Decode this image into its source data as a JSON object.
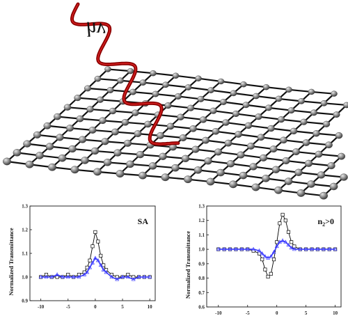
{
  "illustration": {
    "photon_label": "hv",
    "photon_color": "#8b0000",
    "lattice_atom_color": "#8c8c8c",
    "lattice_bond_color": "#111111"
  },
  "chart_data": [
    {
      "type": "scatter",
      "panel_tag": "SA",
      "ylabel": "Normalized Transmittance",
      "xlabel": "",
      "xlim": [
        -12,
        11
      ],
      "ylim": [
        0.9,
        1.3
      ],
      "x_ticks": [
        "-10",
        "-5",
        "0",
        "5",
        "10"
      ],
      "y_ticks": [
        "0.9",
        "1.0",
        "1.1",
        "1.2",
        "1.3"
      ],
      "series": [
        {
          "marker": "square",
          "color": "#000000",
          "x": [
            -10,
            -9,
            -8,
            -7,
            -6,
            -5,
            -4,
            -3,
            -2,
            -1.5,
            -1,
            -0.5,
            0,
            0.5,
            1,
            1.5,
            2,
            3,
            4,
            5,
            6,
            7,
            8,
            9,
            10
          ],
          "values": [
            1.0,
            1.01,
            1.0,
            1.0,
            1.0,
            1.01,
            1.0,
            1.01,
            1.02,
            1.04,
            1.07,
            1.13,
            1.19,
            1.15,
            1.09,
            1.05,
            1.03,
            1.01,
            1.0,
            1.0,
            1.01,
            1.0,
            1.0,
            1.0,
            1.0
          ]
        },
        {
          "marker": "triangle",
          "color": "#3a3aff",
          "x": [
            -10,
            -9,
            -8,
            -7,
            -6,
            -5,
            -4,
            -3,
            -2,
            -1.5,
            -1,
            -0.5,
            0,
            0.5,
            1,
            1.5,
            2,
            3,
            4,
            5,
            6,
            7,
            8,
            9,
            10
          ],
          "values": [
            1.0,
            1.0,
            1.0,
            1.01,
            1.0,
            1.0,
            1.0,
            1.0,
            1.01,
            1.02,
            1.04,
            1.06,
            1.08,
            1.07,
            1.05,
            1.03,
            1.02,
            1.0,
            0.99,
            1.0,
            1.0,
            0.99,
            1.0,
            1.0,
            1.0
          ]
        }
      ]
    },
    {
      "type": "scatter",
      "panel_tag": "n2>0",
      "ylabel": "Normalized Transmittance",
      "xlabel": "",
      "xlim": [
        -12,
        11
      ],
      "ylim": [
        0.6,
        1.3
      ],
      "x_ticks": [
        "-10",
        "-5",
        "0",
        "5",
        "10"
      ],
      "y_ticks": [
        "0.6",
        "0.7",
        "0.8",
        "0.9",
        "1.0",
        "1.1",
        "1.2",
        "1.3"
      ],
      "series": [
        {
          "marker": "square",
          "color": "#000000",
          "x": [
            -10,
            -9,
            -8,
            -7,
            -6,
            -5,
            -4,
            -3,
            -2.5,
            -2,
            -1.5,
            -1,
            -0.5,
            0,
            0.5,
            1,
            1.5,
            2,
            2.5,
            3,
            4,
            5,
            6,
            7,
            8,
            9,
            10
          ],
          "values": [
            1.0,
            1.0,
            1.0,
            1.0,
            1.0,
            1.0,
            0.99,
            0.97,
            0.93,
            0.86,
            0.81,
            0.83,
            0.93,
            1.05,
            1.18,
            1.24,
            1.2,
            1.12,
            1.05,
            1.02,
            1.0,
            1.0,
            1.0,
            1.0,
            1.0,
            1.0,
            1.0
          ]
        },
        {
          "marker": "triangle",
          "color": "#3a3aff",
          "x": [
            -10,
            -9,
            -8,
            -7,
            -6,
            -5,
            -4,
            -3,
            -2.5,
            -2,
            -1.5,
            -1,
            -0.5,
            0,
            0.5,
            1,
            1.5,
            2,
            2.5,
            3,
            4,
            5,
            6,
            7,
            8,
            9,
            10
          ],
          "values": [
            1.0,
            1.0,
            1.0,
            1.0,
            1.0,
            1.0,
            1.0,
            0.99,
            0.97,
            0.95,
            0.94,
            0.95,
            0.98,
            1.02,
            1.05,
            1.06,
            1.05,
            1.03,
            1.01,
            1.0,
            1.0,
            1.0,
            1.0,
            1.0,
            1.0,
            1.0,
            1.0
          ]
        }
      ]
    }
  ]
}
